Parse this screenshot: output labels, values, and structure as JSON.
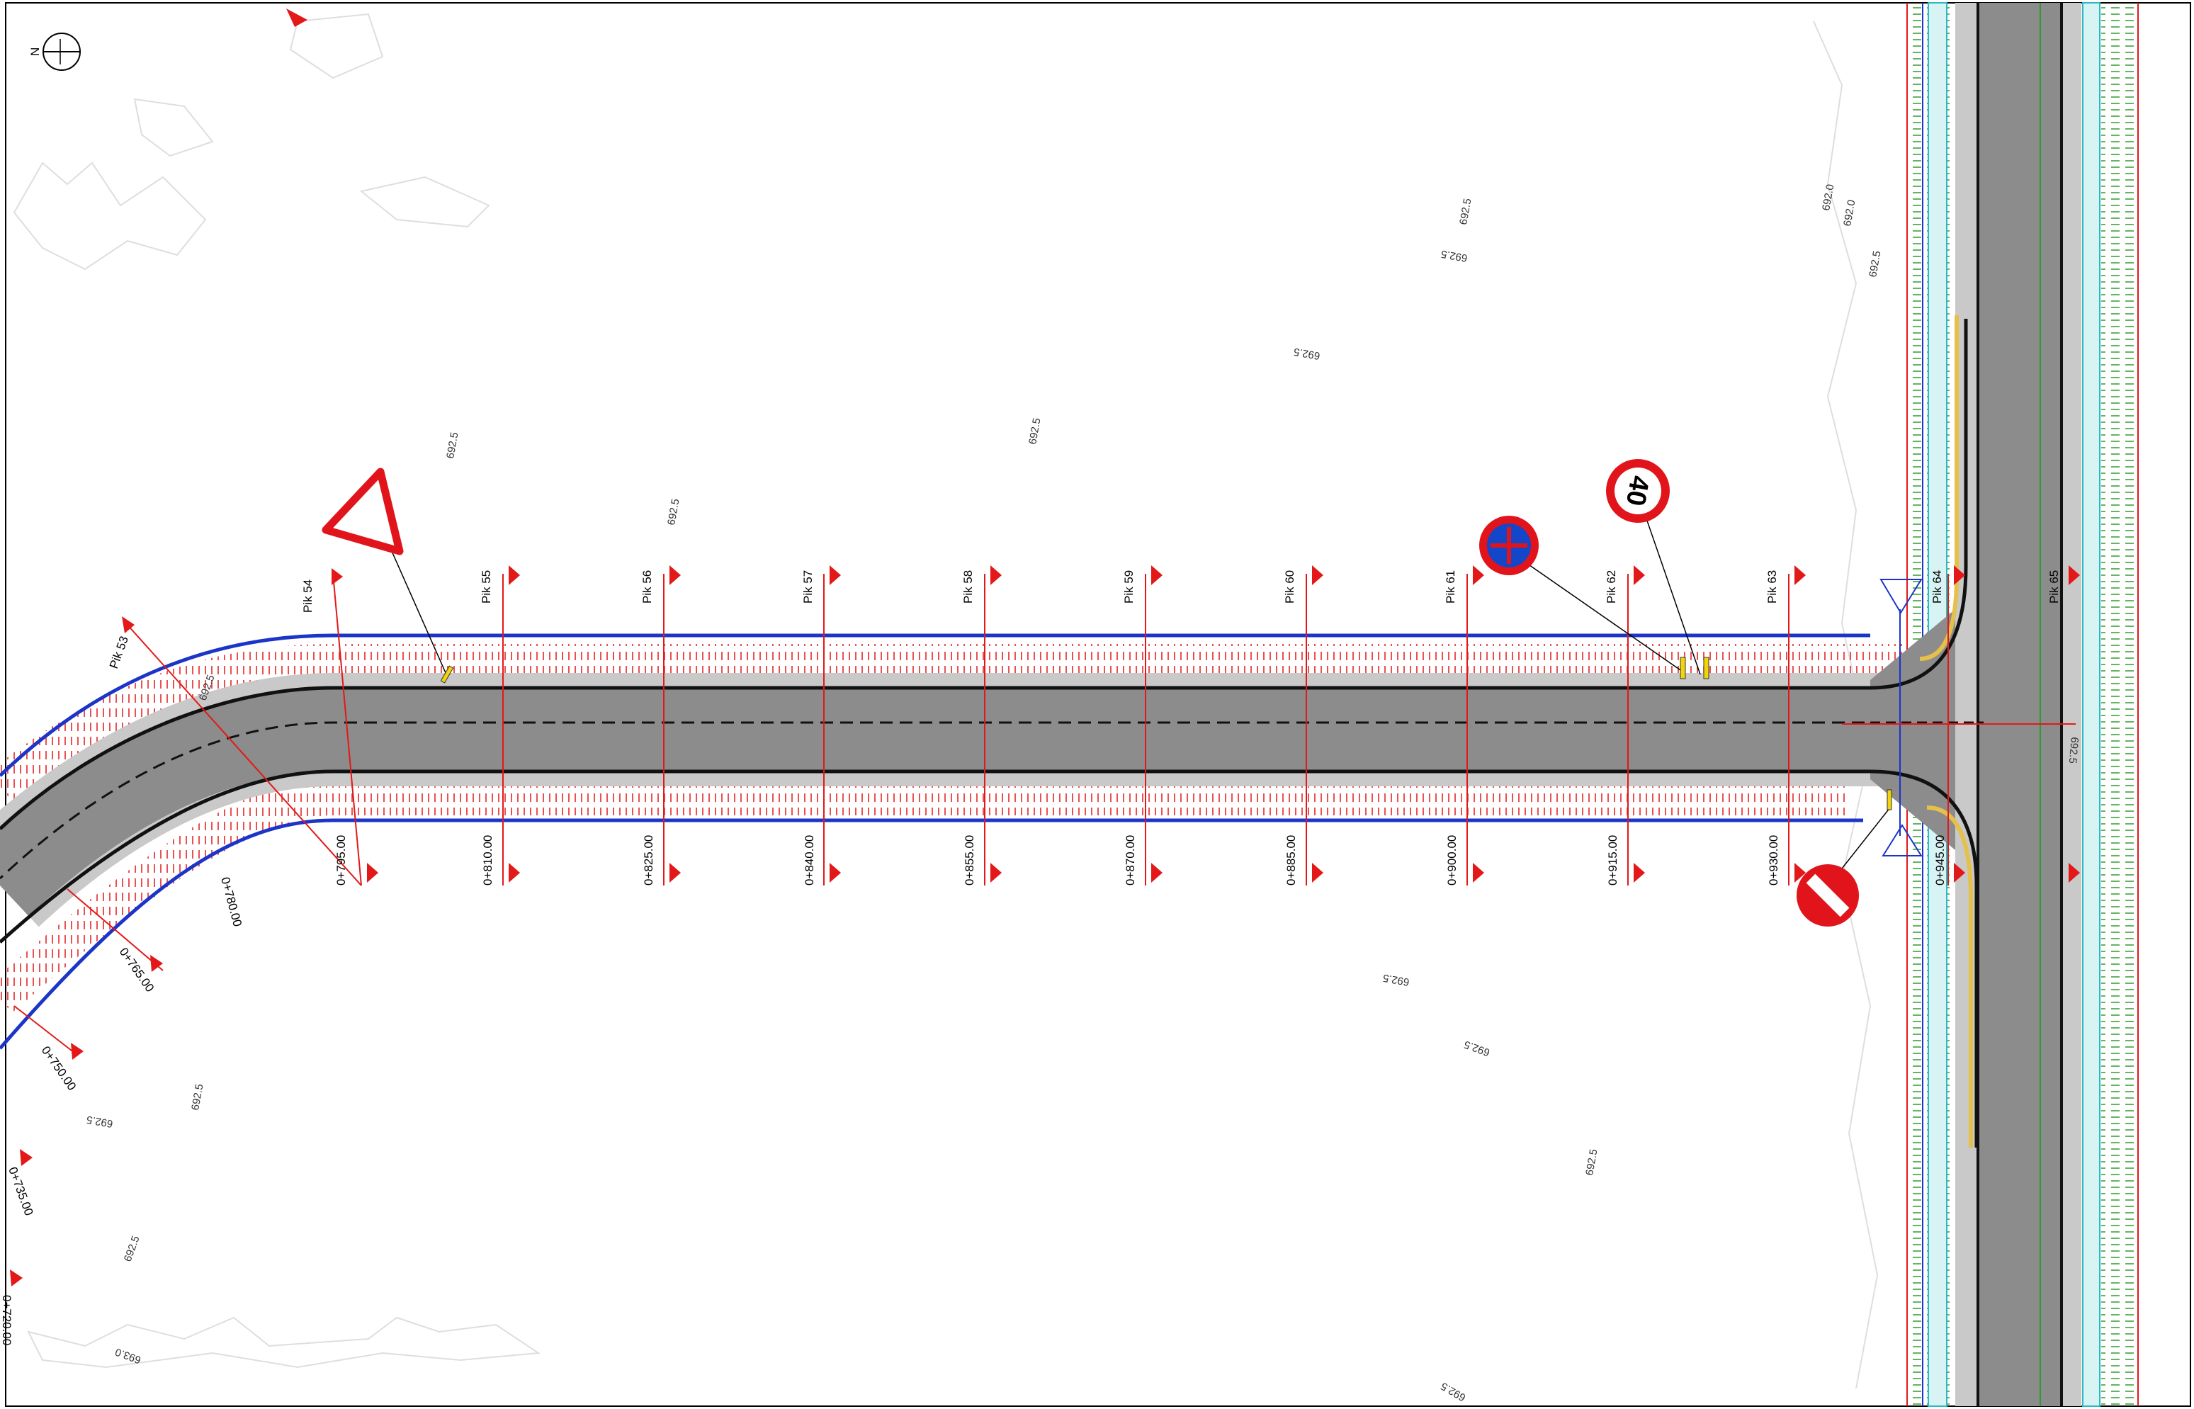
{
  "north_arrow": {
    "label": "N"
  },
  "profiles": [
    {
      "label": "Pik 53"
    },
    {
      "label": "Pik 54"
    },
    {
      "label": "Pik 55"
    },
    {
      "label": "Pik 56"
    },
    {
      "label": "Pik 57"
    },
    {
      "label": "Pik 58"
    },
    {
      "label": "Pik 59"
    },
    {
      "label": "Pik 60"
    },
    {
      "label": "Pik 61"
    },
    {
      "label": "Pik 62"
    },
    {
      "label": "Pik 63"
    },
    {
      "label": "Pik 64"
    },
    {
      "label": "Pik 65"
    }
  ],
  "chainages": [
    {
      "label": "0+720.00"
    },
    {
      "label": "0+735.00"
    },
    {
      "label": "0+750.00"
    },
    {
      "label": "0+765.00"
    },
    {
      "label": "0+780.00"
    },
    {
      "label": "0+795.00"
    },
    {
      "label": "0+810.00"
    },
    {
      "label": "0+825.00"
    },
    {
      "label": "0+840.00"
    },
    {
      "label": "0+855.00"
    },
    {
      "label": "0+870.00"
    },
    {
      "label": "0+885.00"
    },
    {
      "label": "0+900.00"
    },
    {
      "label": "0+915.00"
    },
    {
      "label": "0+930.00"
    },
    {
      "label": "0+945.00"
    }
  ],
  "elevations": [
    {
      "label": "692.5"
    },
    {
      "label": "692.5"
    },
    {
      "label": "692.5"
    },
    {
      "label": "692.5"
    },
    {
      "label": "692.5"
    },
    {
      "label": "692.0"
    },
    {
      "label": "692.0"
    },
    {
      "label": "692.5"
    },
    {
      "label": "692.5"
    },
    {
      "label": "692.5"
    },
    {
      "label": "692.5"
    },
    {
      "label": "692.5"
    },
    {
      "label": "692.5"
    },
    {
      "label": "692.5"
    },
    {
      "label": "692.5"
    },
    {
      "label": "693.0"
    },
    {
      "label": "692.5"
    },
    {
      "label": "692.5"
    },
    {
      "label": "692.5"
    }
  ],
  "signs": {
    "speed_limit": {
      "value": "40"
    }
  },
  "colors": {
    "asphalt": "#8c8c8c",
    "ditch_blue": "#1c35c8",
    "marker_red": "#e31818",
    "verge_green": "#2e9b2e",
    "sign_red": "#e1141b",
    "sign_blue": "#1346c8"
  }
}
